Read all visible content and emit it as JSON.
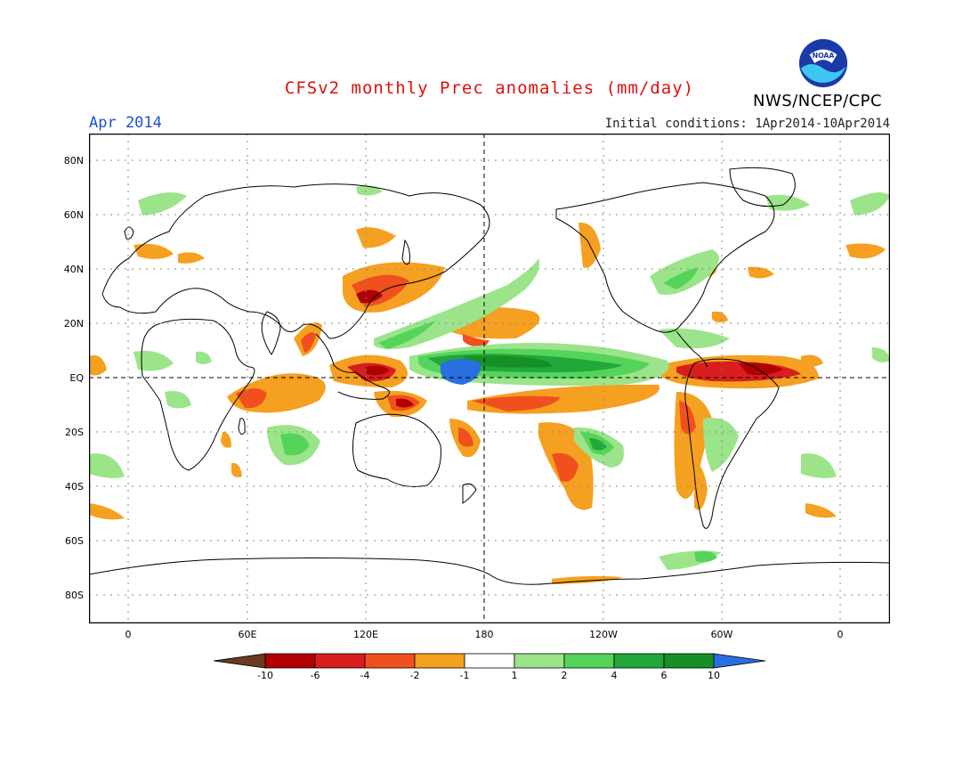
{
  "header": {
    "title": "CFSv2 monthly Prec anomalies (mm/day)",
    "month": "Apr 2014",
    "initial_conditions": "Initial conditions: 1Apr2014-10Apr2014",
    "organization": "NWS/NCEP/CPC",
    "logo_icon": "noaa-logo-icon",
    "logo_text": "NOAA"
  },
  "map": {
    "lat_labels": [
      "80N",
      "60N",
      "40N",
      "20N",
      "EQ",
      "20S",
      "40S",
      "60S",
      "80S"
    ],
    "lon_labels": [
      "0",
      "60E",
      "120E",
      "180",
      "120W",
      "60W",
      "0"
    ],
    "reference_lines": [
      "EQ",
      "180"
    ]
  },
  "legend": {
    "labels": [
      "-10",
      "-6",
      "-4",
      "-2",
      "-1",
      "1",
      "2",
      "4",
      "6",
      "10"
    ],
    "colors": [
      "#6b3a22",
      "#b00000",
      "#d81e1e",
      "#f0501e",
      "#f5a020",
      "#ffffff",
      "#9be48a",
      "#55d45a",
      "#22a83a",
      "#168f26",
      "#2a6ee0"
    ]
  },
  "colors": {
    "title": "#e01010",
    "month": "#2050d0",
    "strong_wet": "#2a6ee0",
    "strong_dry": "#b00000"
  }
}
